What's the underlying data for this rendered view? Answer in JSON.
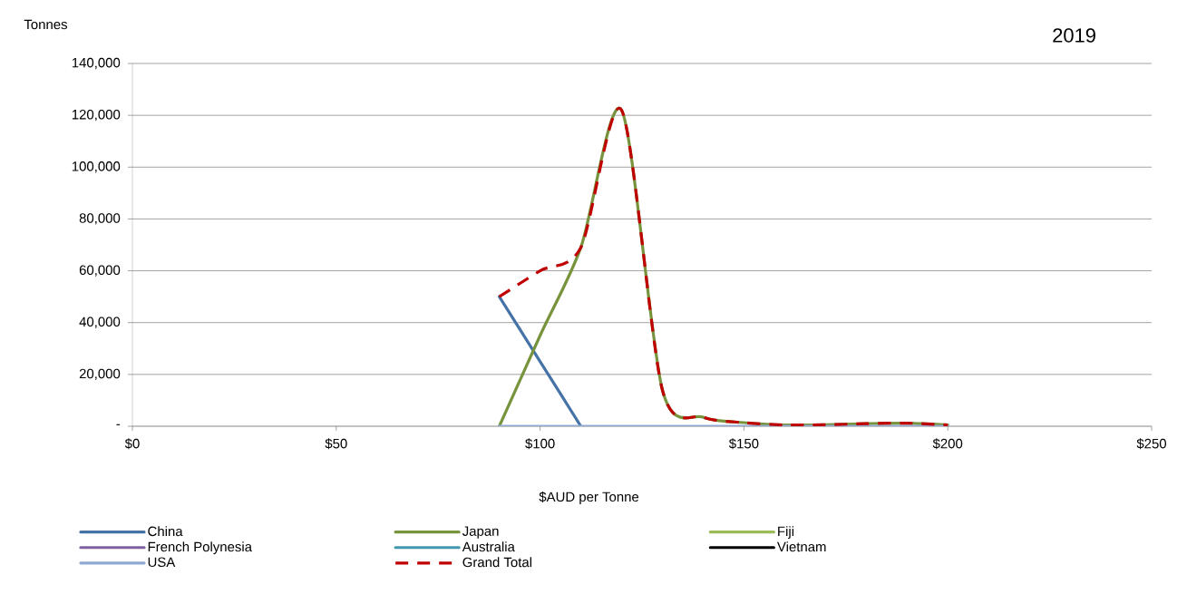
{
  "chart_data": {
    "type": "line",
    "title": "2019",
    "xlabel": "$AUD per Tonne",
    "ylabel": "Tonnes",
    "x": [
      90,
      100,
      110,
      120,
      130,
      140,
      150,
      160,
      170,
      180,
      190,
      200
    ],
    "xlim": [
      0,
      250
    ],
    "xticks": [
      {
        "value": 0,
        "label": "$0"
      },
      {
        "value": 50,
        "label": "$50"
      },
      {
        "value": 100,
        "label": "$100"
      },
      {
        "value": 150,
        "label": "$150"
      },
      {
        "value": 200,
        "label": "$200"
      },
      {
        "value": 250,
        "label": "$250"
      }
    ],
    "ylim": [
      0,
      140000
    ],
    "yticks": [
      {
        "value": 0,
        "label": "-"
      },
      {
        "value": 20000,
        "label": "20,000"
      },
      {
        "value": 40000,
        "label": "40,000"
      },
      {
        "value": 60000,
        "label": "60,000"
      },
      {
        "value": 80000,
        "label": "80,000"
      },
      {
        "value": 100000,
        "label": "100,000"
      },
      {
        "value": 120000,
        "label": "120,000"
      },
      {
        "value": 140000,
        "label": "140,000"
      }
    ],
    "grid": "y",
    "legend": "bottom",
    "marker": "none",
    "series": [
      {
        "name": "China",
        "color": "#4572a7",
        "values": [
          50000,
          25000,
          0,
          null,
          null,
          null,
          null,
          null,
          null,
          null,
          null,
          null
        ]
      },
      {
        "name": "Japan",
        "color": "#77933c",
        "values": [
          0,
          35000,
          69000,
          122000,
          14000,
          3500,
          1400,
          500,
          600,
          1000,
          1200,
          500
        ]
      },
      {
        "name": "Fiji",
        "color": "#9bbb59",
        "values": [
          null,
          null,
          null,
          null,
          null,
          null,
          null,
          null,
          null,
          null,
          null,
          null
        ]
      },
      {
        "name": "French Polynesia",
        "color": "#7f60a0",
        "values": [
          null,
          null,
          null,
          null,
          null,
          null,
          null,
          null,
          null,
          null,
          null,
          null
        ]
      },
      {
        "name": "Australia",
        "color": "#4198af",
        "values": [
          null,
          null,
          null,
          null,
          null,
          null,
          null,
          null,
          null,
          null,
          null,
          null
        ]
      },
      {
        "name": "Vietnam",
        "color": "#000000",
        "values": [
          null,
          null,
          null,
          null,
          null,
          null,
          null,
          null,
          null,
          null,
          null,
          null
        ]
      },
      {
        "name": "USA",
        "color": "#8fa9d3",
        "values": [
          0,
          0,
          0,
          0,
          0,
          0,
          0,
          0,
          0,
          0,
          0,
          0
        ]
      },
      {
        "name": "Grand Total",
        "color": "#c00000",
        "line_style": "dashed",
        "values": [
          50000,
          60000,
          69000,
          122000,
          14000,
          3500,
          1400,
          500,
          600,
          1000,
          1200,
          500
        ]
      }
    ]
  }
}
